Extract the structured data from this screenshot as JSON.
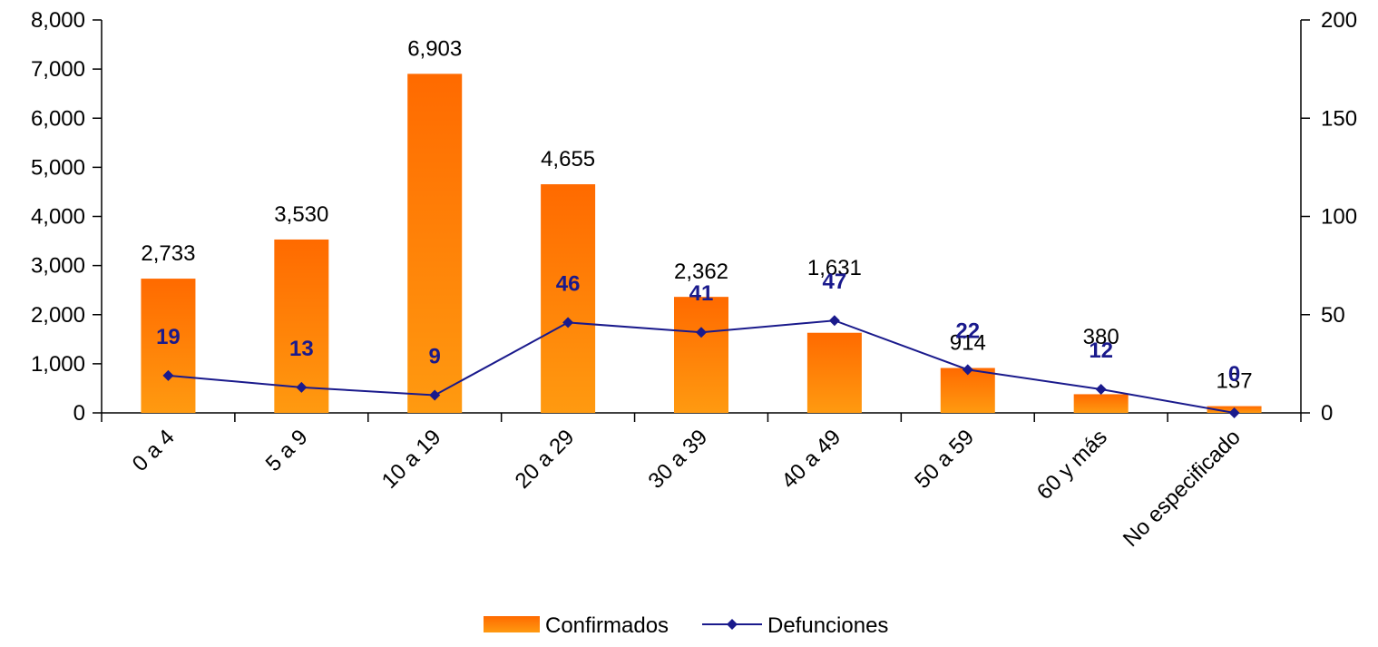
{
  "chart_data": {
    "type": "bar",
    "categories": [
      "0 a 4",
      "5 a 9",
      "10 a 19",
      "20 a 29",
      "30 a 39",
      "40 a 49",
      "50 a 59",
      "60 y más",
      "No especificado"
    ],
    "series": [
      {
        "name": "Confirmados",
        "type": "bar",
        "axis": "left",
        "values": [
          2733,
          3530,
          6903,
          4655,
          2362,
          1631,
          914,
          380,
          137
        ],
        "labels": [
          "2,733",
          "3,530",
          "6,903",
          "4,655",
          "2,362",
          "1,631",
          "914",
          "380",
          "137"
        ],
        "color": "#ff7f00"
      },
      {
        "name": "Defunciones",
        "type": "line",
        "axis": "right",
        "values": [
          19,
          13,
          9,
          46,
          41,
          47,
          22,
          12,
          0
        ],
        "labels": [
          "19",
          "13",
          "9",
          "46",
          "41",
          "47",
          "22",
          "12",
          "0"
        ],
        "color": "#1a1a8c"
      }
    ],
    "y_left": {
      "ylim": [
        0,
        8000
      ],
      "ticks": [
        "0",
        "1,000",
        "2,000",
        "3,000",
        "4,000",
        "5,000",
        "6,000",
        "7,000",
        "8,000"
      ]
    },
    "y_right": {
      "ylim": [
        0,
        200
      ],
      "ticks": [
        "0",
        "50",
        "100",
        "150",
        "200"
      ]
    },
    "legend": {
      "placement": "bottom",
      "items": [
        "Confirmados",
        "Defunciones"
      ]
    },
    "grid": false,
    "title": "",
    "xlabel": "",
    "ylabel": ""
  }
}
